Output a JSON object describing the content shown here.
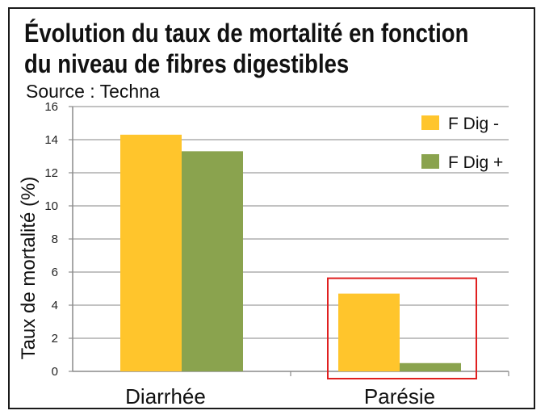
{
  "chart_data": {
    "type": "bar",
    "title_lines": [
      "Évolution du taux de mortalité en fonction",
      "du niveau de fibres digestibles"
    ],
    "subtitle": "Source : Techna",
    "xlabel": "",
    "ylabel": "Taux de mortalité (%)",
    "ylim": [
      0,
      16
    ],
    "yticks": [
      0,
      2,
      4,
      6,
      8,
      10,
      12,
      14,
      16
    ],
    "grid": true,
    "legend_position": "top-right",
    "categories": [
      "Diarrhée",
      "Parésie"
    ],
    "series": [
      {
        "name": "F Dig -",
        "color": "#FFC52C",
        "values": [
          14.3,
          4.7
        ]
      },
      {
        "name": "F Dig +",
        "color": "#8AA34E",
        "values": [
          13.3,
          0.5
        ]
      }
    ],
    "highlight": {
      "category": "Parésie",
      "color": "#E02020"
    }
  }
}
